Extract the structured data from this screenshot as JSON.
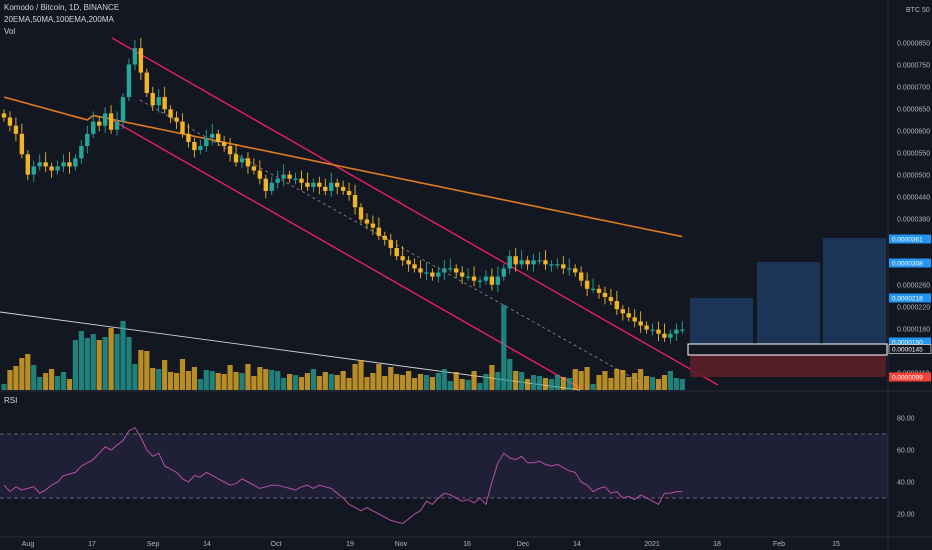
{
  "header": {
    "symbol_line": "Komodo / Bitcoin, 1D, BINANCE",
    "indicators_line": "20EMA,50MA,100EMA,200MA",
    "volume_label": "Vol",
    "rsi_label": "RSI",
    "currency_badge": "BTC",
    "currency_value": "50"
  },
  "colors": {
    "background": "#131722",
    "up": "#26a69a",
    "down": "#f0b429",
    "ma200": "#e07b1f",
    "channel": "#e91e63",
    "rsi_line": "#b84fa9",
    "trend_line": "#d1d4dc",
    "projection_box": "#1e3a5f",
    "stop_box": "#5c1f27",
    "price_badge": "#2196f3",
    "stop_badge": "#f44336"
  },
  "chart_data": {
    "type": "candlestick",
    "price_axis_ticks": [
      "0.0000850",
      "0.0000750",
      "0.0000700",
      "0.0000650",
      "0.0000600",
      "0.0000550",
      "0.0000500",
      "0.0000440",
      "0.0000380",
      "0.0000340",
      "0.0000300",
      "0.0000260",
      "0.0000220",
      "0.0000180",
      "0.0000145",
      "0.0000119"
    ],
    "time_axis_ticks": [
      "Aug",
      "17",
      "Sep",
      "14",
      "Oct",
      "19",
      "Nov",
      "16",
      "Dec",
      "14",
      "2021",
      "18",
      "Feb",
      "15"
    ],
    "rsi_axis_ticks": [
      "80.00",
      "60.00",
      "40.00",
      "20.00"
    ],
    "price_badges": [
      {
        "label": "0.0000361",
        "color": "#2196f3"
      },
      {
        "label": "0.0000308",
        "color": "#2196f3"
      },
      {
        "label": "0.0000218",
        "color": "#2196f3"
      },
      {
        "label": "0.0000150",
        "color": "#2196f3"
      },
      {
        "label": "0.0000145",
        "color": "#131722"
      },
      {
        "label": "0.0000099",
        "color": "#f44336"
      }
    ],
    "rsi_band": [
      30,
      70
    ],
    "price_series": [
      67,
      65,
      63,
      58,
      53,
      55,
      56,
      55,
      54,
      55,
      56,
      55,
      57,
      60,
      63,
      66,
      65,
      68,
      64,
      66,
      72,
      80,
      84,
      78,
      73,
      70,
      72,
      69,
      67,
      66,
      63,
      61,
      59,
      60,
      62,
      63,
      61,
      60,
      58,
      56,
      57,
      55,
      54,
      52,
      49,
      51,
      52,
      53,
      52,
      52,
      51,
      50,
      51,
      50,
      49,
      51,
      50,
      49,
      48,
      45,
      42,
      41,
      40,
      38,
      37,
      35,
      33,
      32,
      31,
      30,
      29,
      29,
      28,
      29,
      30,
      30,
      29,
      28,
      28,
      27,
      27,
      28,
      26,
      28,
      30,
      33,
      31,
      32,
      31,
      32,
      32,
      31,
      31,
      31,
      30,
      30,
      29,
      27,
      25,
      25,
      24,
      23,
      22,
      20,
      19,
      18,
      17,
      16,
      15,
      15,
      14,
      13,
      14,
      15,
      15
    ],
    "rsi_series": [
      38,
      34,
      37,
      35,
      36,
      37,
      33,
      35,
      38,
      40,
      44,
      45,
      46,
      50,
      52,
      54,
      58,
      62,
      60,
      63,
      66,
      72,
      74,
      68,
      60,
      56,
      58,
      50,
      48,
      46,
      42,
      40,
      44,
      43,
      46,
      44,
      42,
      40,
      38,
      39,
      42,
      40,
      38,
      36,
      37,
      38,
      38,
      37,
      36,
      35,
      37,
      38,
      36,
      38,
      37,
      36,
      33,
      30,
      26,
      24,
      22,
      24,
      22,
      20,
      18,
      16,
      15,
      14,
      17,
      20,
      22,
      28,
      26,
      30,
      33,
      32,
      30,
      28,
      29,
      27,
      30,
      26,
      40,
      52,
      58,
      55,
      54,
      56,
      52,
      52,
      53,
      51,
      50,
      51,
      49,
      47,
      46,
      40,
      38,
      34,
      36,
      37,
      33,
      34,
      30,
      31,
      29,
      32,
      30,
      28,
      26,
      33,
      33,
      34,
      34
    ]
  }
}
